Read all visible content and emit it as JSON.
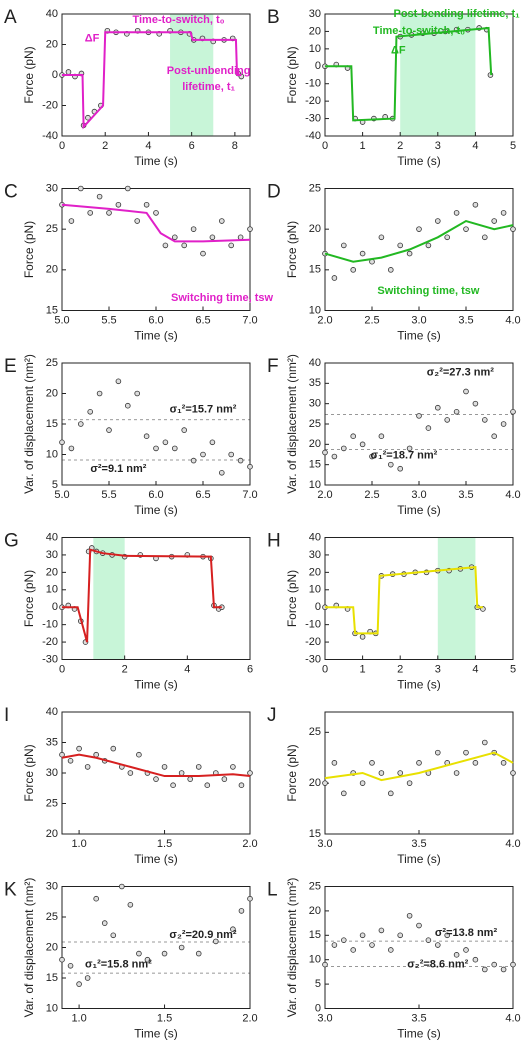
{
  "chart_data": [
    {
      "type": "scatter",
      "panel": "A",
      "xlabel": "Time (s)",
      "ylabel": "Force (pN)",
      "xlim": [
        0,
        8.7
      ],
      "ylim": [
        -40,
        40
      ],
      "xticks": [
        0,
        2,
        4,
        6,
        8
      ],
      "yticks": [
        -40,
        -20,
        0,
        20,
        40
      ],
      "highlight": [
        5,
        7
      ],
      "highlight_color": "#c8f5d8",
      "points": {
        "x": [
          0,
          0.3,
          0.6,
          0.9,
          1.0,
          1.2,
          1.5,
          1.8,
          2.1,
          2.5,
          3,
          3.5,
          4,
          4.5,
          5,
          5.5,
          5.9,
          6.1,
          6.5,
          7,
          7.5,
          7.9,
          8.15,
          8.3
        ],
        "y": [
          0,
          2,
          -1,
          1,
          -33,
          -28,
          -24,
          -20,
          29,
          28,
          27,
          29,
          28,
          27,
          29,
          28,
          27,
          23,
          24,
          22,
          23,
          24,
          1,
          -1
        ]
      },
      "fit": {
        "color": "#e020c8",
        "x": [
          0,
          0.95,
          1.0,
          1.9,
          2.0,
          5.95,
          6.05,
          8.05,
          8.1,
          8.3
        ],
        "y": [
          0,
          0,
          -34,
          -20,
          28,
          28,
          23,
          23,
          0,
          0
        ]
      },
      "annotations": [
        "Time-to-switch, t₀",
        "ΔF",
        "Post-unbending",
        "lifetime, t₁"
      ],
      "annotation_color": "#e020c8"
    },
    {
      "type": "scatter",
      "panel": "B",
      "xlabel": "Time (s)",
      "ylabel": "Force (pN)",
      "xlim": [
        0,
        5
      ],
      "ylim": [
        -40,
        30
      ],
      "xticks": [
        0,
        1,
        2,
        3,
        4,
        5
      ],
      "yticks": [
        -40,
        -30,
        -20,
        -10,
        0,
        10,
        20,
        30
      ],
      "highlight": [
        2,
        4
      ],
      "highlight_color": "#c8f5d8",
      "points": {
        "x": [
          0,
          0.3,
          0.6,
          0.8,
          1.0,
          1.3,
          1.6,
          1.8,
          2.0,
          2.3,
          2.6,
          2.9,
          3.2,
          3.5,
          3.8,
          4.1,
          4.3,
          4.4
        ],
        "y": [
          0,
          1,
          -1,
          -30,
          -32,
          -30,
          -29,
          -30,
          17,
          18,
          19,
          19,
          20,
          21,
          21,
          22,
          21,
          -5
        ]
      },
      "fit": {
        "color": "#22b822",
        "x": [
          0,
          0.7,
          0.75,
          1.85,
          1.9,
          4.35,
          4.42
        ],
        "y": [
          0,
          0,
          -31,
          -30,
          17,
          22,
          -5
        ]
      },
      "annotations": [
        "Post-bending lifetime, t₁",
        "Time-to-switch, t₀",
        "ΔF"
      ],
      "annotation_color": "#22b822"
    },
    {
      "type": "scatter",
      "panel": "C",
      "xlabel": "Time (s)",
      "ylabel": "Force (pN)",
      "xlim": [
        5,
        7
      ],
      "ylim": [
        15,
        30
      ],
      "xticks": [
        {
          "value": 5,
          "label": "5.0"
        },
        5.5,
        {
          "value": 6,
          "label": "6.0"
        },
        6.5,
        {
          "value": 7,
          "label": "7.0"
        }
      ],
      "yticks": [
        15,
        20,
        25,
        30
      ],
      "points": {
        "x": [
          5.0,
          5.1,
          5.2,
          5.3,
          5.4,
          5.5,
          5.6,
          5.7,
          5.8,
          5.9,
          6.0,
          6.1,
          6.2,
          6.3,
          6.4,
          6.5,
          6.6,
          6.7,
          6.8,
          6.9,
          7.0
        ],
        "y": [
          28,
          26,
          30,
          27,
          29,
          27,
          28,
          30,
          26,
          28,
          27,
          23,
          24,
          23,
          25,
          22,
          24,
          26,
          23,
          24,
          25
        ]
      },
      "fit": {
        "color": "#e020c8",
        "x": [
          5,
          5.5,
          5.9,
          6.05,
          6.2,
          6.5,
          7
        ],
        "y": [
          28,
          27.5,
          27,
          24.5,
          23.5,
          23.5,
          23.7
        ]
      },
      "annotations": [
        "Switching time, tsw"
      ],
      "annotation_color": "#e020c8"
    },
    {
      "type": "scatter",
      "panel": "D",
      "xlabel": "Time (s)",
      "ylabel": "Force (pN)",
      "xlim": [
        2,
        4
      ],
      "ylim": [
        10,
        25
      ],
      "xticks": [
        {
          "value": 2,
          "label": "2.0"
        },
        2.5,
        {
          "value": 3,
          "label": "3.0"
        },
        3.5,
        {
          "value": 4,
          "label": "4.0"
        }
      ],
      "yticks": [
        10,
        15,
        20,
        25
      ],
      "points": {
        "x": [
          2.0,
          2.1,
          2.2,
          2.3,
          2.4,
          2.5,
          2.6,
          2.7,
          2.8,
          2.9,
          3.0,
          3.1,
          3.2,
          3.3,
          3.4,
          3.5,
          3.6,
          3.7,
          3.8,
          3.9,
          4.0
        ],
        "y": [
          17,
          14,
          18,
          15,
          17,
          16,
          19,
          15,
          18,
          17,
          20,
          18,
          21,
          19,
          22,
          20,
          23,
          19,
          21,
          22,
          20
        ]
      },
      "fit": {
        "color": "#22b822",
        "x": [
          2,
          2.3,
          2.6,
          2.9,
          3.2,
          3.5,
          3.8,
          4
        ],
        "y": [
          17,
          16,
          16.5,
          17.5,
          19,
          21,
          20,
          20.5
        ]
      },
      "annotations": [
        "Switching time, tsw"
      ],
      "annotation_color": "#22b822"
    },
    {
      "type": "scatter",
      "panel": "E",
      "xlabel": "Time (s)",
      "ylabel": "Var. of displacement (nm²)",
      "xlim": [
        5,
        7
      ],
      "ylim": [
        5,
        25
      ],
      "xticks": [
        {
          "value": 5,
          "label": "5.0"
        },
        5.5,
        {
          "value": 6,
          "label": "6.0"
        },
        6.5,
        {
          "value": 7,
          "label": "7.0"
        }
      ],
      "yticks": [
        5,
        10,
        15,
        20,
        25
      ],
      "hlines": [
        15.7,
        9.1
      ],
      "points": {
        "x": [
          5.0,
          5.1,
          5.2,
          5.3,
          5.4,
          5.5,
          5.6,
          5.7,
          5.8,
          5.9,
          6.0,
          6.1,
          6.2,
          6.3,
          6.4,
          6.5,
          6.6,
          6.7,
          6.8,
          6.9,
          7.0
        ],
        "y": [
          12,
          11,
          15,
          17,
          20,
          14,
          22,
          18,
          20,
          13,
          11,
          12,
          11,
          14,
          9,
          10,
          12,
          7,
          10,
          9,
          8
        ]
      },
      "annotations": [
        "σ₁²=15.7 nm²",
        "σ²=9.1 nm²"
      ],
      "annotation_color": "#222222"
    },
    {
      "type": "scatter",
      "panel": "F",
      "xlabel": "Time (s)",
      "ylabel": "Var. of displacement (nm²)",
      "xlim": [
        2,
        4
      ],
      "ylim": [
        10,
        40
      ],
      "xticks": [
        {
          "value": 2,
          "label": "2.0"
        },
        2.5,
        {
          "value": 3,
          "label": "3.0"
        },
        3.5,
        {
          "value": 4,
          "label": "4.0"
        }
      ],
      "yticks": [
        10,
        15,
        20,
        25,
        30,
        35,
        40
      ],
      "hlines": [
        27.3,
        18.7
      ],
      "points": {
        "x": [
          2.0,
          2.1,
          2.2,
          2.3,
          2.4,
          2.5,
          2.6,
          2.7,
          2.8,
          2.9,
          3.0,
          3.1,
          3.2,
          3.3,
          3.4,
          3.5,
          3.6,
          3.7,
          3.8,
          3.9,
          4.0
        ],
        "y": [
          18,
          17,
          19,
          22,
          20,
          17,
          22,
          15,
          14,
          19,
          27,
          24,
          29,
          26,
          28,
          33,
          30,
          26,
          22,
          25,
          28
        ]
      },
      "annotations": [
        "σ₂²=27.3 nm²",
        "σ₁²=18.7 nm²"
      ],
      "annotation_color": "#222222"
    },
    {
      "type": "scatter",
      "panel": "G",
      "xlabel": "Time (s)",
      "ylabel": "Force (pN)",
      "xlim": [
        0,
        6
      ],
      "ylim": [
        -30,
        40
      ],
      "xticks": [
        0,
        2,
        4,
        6
      ],
      "yticks": [
        -30,
        -20,
        -10,
        0,
        10,
        20,
        30,
        40
      ],
      "highlight": [
        1,
        2
      ],
      "highlight_color": "#c8f5d8",
      "points": {
        "x": [
          0,
          0.2,
          0.4,
          0.6,
          0.75,
          0.85,
          0.95,
          1.1,
          1.3,
          1.6,
          2,
          2.5,
          3,
          3.5,
          4,
          4.5,
          4.75,
          4.85,
          5.0,
          5.1
        ],
        "y": [
          0,
          1,
          -1,
          -8,
          -20,
          32,
          34,
          32,
          31,
          30,
          29,
          30,
          28,
          29,
          30,
          29,
          28,
          1,
          -1,
          0
        ]
      },
      "fit": {
        "color": "#d62020",
        "x": [
          0,
          0.5,
          0.8,
          0.9,
          1.3,
          2,
          4.75,
          4.85,
          5.1
        ],
        "y": [
          0,
          0,
          -20,
          33,
          31,
          29.5,
          29,
          0,
          0
        ]
      },
      "annotations": [],
      "annotation_color": "#222222"
    },
    {
      "type": "scatter",
      "panel": "H",
      "xlabel": "Time (s)",
      "ylabel": "Force (pN)",
      "xlim": [
        0,
        5
      ],
      "ylim": [
        -30,
        40
      ],
      "xticks": [
        0,
        1,
        2,
        3,
        4,
        5
      ],
      "yticks": [
        -30,
        -20,
        -10,
        0,
        10,
        20,
        30,
        40
      ],
      "highlight": [
        3,
        4
      ],
      "highlight_color": "#c8f5d8",
      "points": {
        "x": [
          0,
          0.3,
          0.6,
          0.8,
          1.0,
          1.2,
          1.35,
          1.5,
          1.8,
          2.1,
          2.4,
          2.7,
          3.0,
          3.3,
          3.6,
          3.9,
          4.05,
          4.2
        ],
        "y": [
          0,
          1,
          -1,
          -15,
          -17,
          -14,
          -15,
          18,
          19,
          19,
          20,
          20,
          21,
          21,
          22,
          23,
          0,
          -1
        ]
      },
      "fit": {
        "color": "#e8e000",
        "x": [
          0,
          0.75,
          0.8,
          1.4,
          1.45,
          4.0,
          4.05,
          4.2
        ],
        "y": [
          0,
          0,
          -15,
          -15,
          18,
          23,
          0,
          0
        ]
      },
      "annotations": [],
      "annotation_color": "#222222"
    },
    {
      "type": "scatter",
      "panel": "I",
      "xlabel": "Time (s)",
      "ylabel": "Force (pN)",
      "xlim": [
        0.9,
        2.0
      ],
      "ylim": [
        20,
        40
      ],
      "xticks": [
        {
          "value": 1,
          "label": "1.0"
        },
        1.5,
        {
          "value": 2,
          "label": "2.0"
        }
      ],
      "yticks": [
        20,
        25,
        30,
        35,
        40
      ],
      "points": {
        "x": [
          0.9,
          0.95,
          1.0,
          1.05,
          1.1,
          1.15,
          1.2,
          1.25,
          1.3,
          1.35,
          1.4,
          1.45,
          1.5,
          1.55,
          1.6,
          1.65,
          1.7,
          1.75,
          1.8,
          1.85,
          1.9,
          1.95,
          2.0
        ],
        "y": [
          33,
          32,
          34,
          31,
          33,
          32,
          34,
          31,
          30,
          33,
          30,
          29,
          31,
          28,
          30,
          29,
          31,
          28,
          30,
          29,
          31,
          28,
          30
        ]
      },
      "fit": {
        "color": "#d62020",
        "x": [
          0.9,
          1.0,
          1.1,
          1.3,
          1.5,
          1.7,
          1.9,
          2.0
        ],
        "y": [
          32.5,
          33,
          32.5,
          31,
          29.5,
          29.5,
          29.8,
          29.5
        ]
      },
      "annotations": [],
      "annotation_color": "#222222"
    },
    {
      "type": "scatter",
      "panel": "J",
      "xlabel": "Time (s)",
      "ylabel": "Force (pN)",
      "xlim": [
        3,
        4
      ],
      "ylim": [
        15,
        27
      ],
      "xticks": [
        {
          "value": 3,
          "label": "3.0"
        },
        3.5,
        {
          "value": 4,
          "label": "4.0"
        }
      ],
      "yticks": [
        15,
        20,
        25
      ],
      "points": {
        "x": [
          3.0,
          3.05,
          3.1,
          3.15,
          3.2,
          3.25,
          3.3,
          3.35,
          3.4,
          3.45,
          3.5,
          3.55,
          3.6,
          3.65,
          3.7,
          3.75,
          3.8,
          3.85,
          3.9,
          3.95,
          4.0
        ],
        "y": [
          20,
          22,
          19,
          21,
          20,
          22,
          21,
          19,
          21,
          20,
          22,
          21,
          23,
          22,
          21,
          23,
          22,
          24,
          23,
          22,
          21
        ]
      },
      "fit": {
        "color": "#e8e000",
        "x": [
          3,
          3.2,
          3.3,
          3.5,
          3.7,
          3.9,
          4
        ],
        "y": [
          20.5,
          21,
          20.3,
          21,
          22,
          23,
          22
        ]
      },
      "annotations": [],
      "annotation_color": "#222222"
    },
    {
      "type": "scatter",
      "panel": "K",
      "xlabel": "Time (s)",
      "ylabel": "Var. of displacement (nm²)",
      "xlim": [
        0.9,
        2.0
      ],
      "ylim": [
        10,
        30
      ],
      "xticks": [
        {
          "value": 1,
          "label": "1.0"
        },
        1.5,
        {
          "value": 2,
          "label": "2.0"
        }
      ],
      "yticks": [
        10,
        15,
        20,
        25,
        30
      ],
      "hlines": [
        20.9,
        15.8
      ],
      "points": {
        "x": [
          0.9,
          0.95,
          1.0,
          1.05,
          1.1,
          1.15,
          1.2,
          1.25,
          1.3,
          1.35,
          1.4,
          1.5,
          1.6,
          1.7,
          1.8,
          1.9,
          1.95,
          2.0
        ],
        "y": [
          18,
          17,
          14,
          15,
          28,
          24,
          22,
          30,
          27,
          19,
          18,
          19,
          20,
          19,
          21,
          23,
          26,
          28
        ]
      },
      "annotations": [
        "σ₂²=20.9 nm²",
        "σ₁²=15.8 nm²"
      ],
      "annotation_color": "#222222"
    },
    {
      "type": "scatter",
      "panel": "L",
      "xlabel": "Time (s)",
      "ylabel": "Var. of displacement (nm²)",
      "xlim": [
        3,
        4
      ],
      "ylim": [
        0,
        25
      ],
      "xticks": [
        {
          "value": 3,
          "label": "3.0"
        },
        3.5,
        {
          "value": 4,
          "label": "4.0"
        }
      ],
      "yticks": [
        0,
        5,
        10,
        15,
        20,
        25
      ],
      "hlines": [
        13.8,
        8.6
      ],
      "points": {
        "x": [
          3.0,
          3.05,
          3.1,
          3.15,
          3.2,
          3.25,
          3.3,
          3.35,
          3.4,
          3.45,
          3.5,
          3.55,
          3.6,
          3.65,
          3.7,
          3.75,
          3.8,
          3.85,
          3.9,
          3.95,
          4.0
        ],
        "y": [
          9,
          13,
          14,
          12,
          15,
          13,
          16,
          12,
          15,
          19,
          17,
          14,
          13,
          15,
          11,
          12,
          10,
          8,
          9,
          8,
          9
        ]
      },
      "annotations": [
        "σ²=13.8 nm²",
        "σ₂²=8.6 nm²"
      ],
      "annotation_color": "#222222"
    }
  ]
}
